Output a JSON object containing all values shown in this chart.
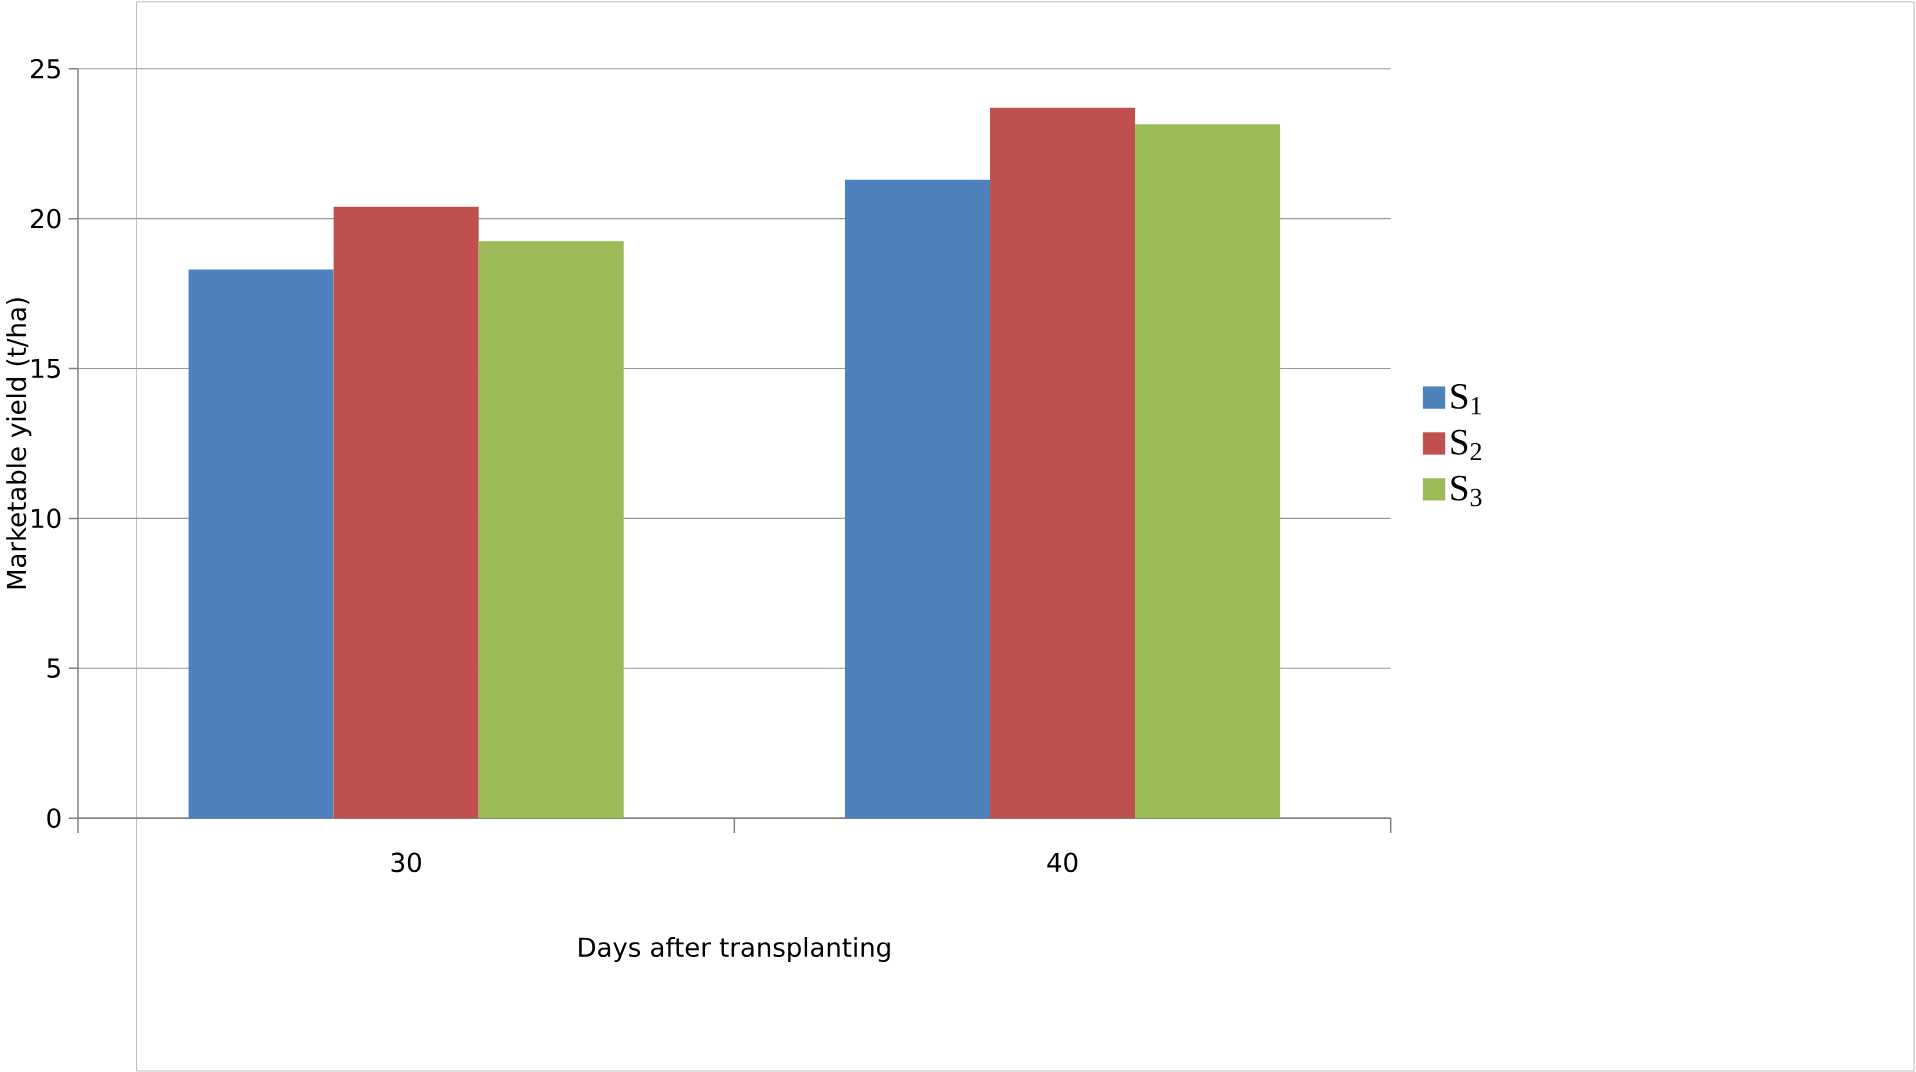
{
  "chart_data": {
    "type": "bar",
    "xlabel": "Days after transplanting",
    "ylabel": "Marketable yield (t/ha)",
    "categories": [
      "30",
      "40"
    ],
    "series": [
      {
        "name": "S$_{1}$",
        "color": "#4f81bd",
        "values": [
          18.3,
          21.3
        ]
      },
      {
        "name": "S$_{2}$",
        "color": "#c0504d",
        "values": [
          20.4,
          23.7
        ]
      },
      {
        "name": "S$_{3}$",
        "color": "#9bbb59",
        "values": [
          19.25,
          23.15
        ]
      }
    ],
    "ylim": [
      0,
      25
    ],
    "yticks": [
      0,
      5,
      10,
      15,
      20,
      25
    ],
    "grid": "y",
    "legend": "right"
  }
}
